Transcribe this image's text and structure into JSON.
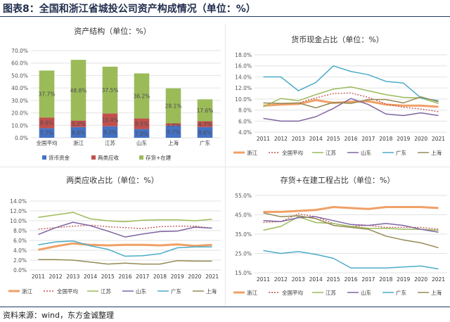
{
  "figure": {
    "title": "图表8：全国和浙江省城投公司资产构成情况（单位：%）",
    "source": "资料来源：wind，东方金诚整理"
  },
  "chart_data": [
    {
      "id": "asset-structure",
      "type": "bar",
      "stacked": true,
      "title": "资产结构（单位：%）",
      "categories": [
        "全国平均",
        "浙江",
        "江苏",
        "山东",
        "上海",
        "广东"
      ],
      "series": [
        {
          "name": "货币资金",
          "color": "#4472c4",
          "values": [
            7.7,
            8.6,
            9.2,
            7.0,
            9.7,
            8.6
          ]
        },
        {
          "name": "两类应收",
          "color": "#c0504d",
          "values": [
            8.6,
            5.2,
            10.4,
            8.5,
            1.9,
            4.7
          ]
        },
        {
          "name": "存货+在建",
          "color": "#9bbb59",
          "values": [
            37.7,
            48.8,
            37.5,
            36.2,
            28.1,
            17.6
          ]
        }
      ],
      "labels": [
        [
          "7.7%",
          "8.6%",
          "9.2%",
          "7.0%",
          "9.7%",
          "8.6%"
        ],
        [
          "8.6%",
          "5.2%",
          "10.4%",
          "8.5%",
          "1.9%",
          "4.7%"
        ],
        [
          "37.7%",
          "48.8%",
          "37.5%",
          "36.2%",
          "28.1%",
          "17.6%"
        ]
      ],
      "yticks": [
        "0.0%",
        "10.0%",
        "20.0%",
        "30.0%",
        "40.0%",
        "50.0%",
        "60.0%",
        "70.0%"
      ],
      "ylim": [
        0,
        70
      ]
    },
    {
      "id": "cash-share",
      "type": "line",
      "title": "货币现金占比（单位：%）",
      "x": [
        "2011",
        "2012",
        "2013",
        "2014",
        "2015",
        "2016",
        "2017",
        "2018",
        "2019",
        "2020",
        "2021"
      ],
      "yticks": [
        "4.0%",
        "6.0%",
        "8.0%",
        "10.0%",
        "12.0%",
        "14.0%",
        "16.0%",
        "18.0%"
      ],
      "ylim": [
        4,
        18
      ],
      "series": [
        {
          "name": "浙江",
          "color": "#f0a067",
          "style": "thick",
          "values": [
            8.8,
            9.0,
            9.1,
            9.8,
            9.3,
            9.5,
            9.6,
            9.0,
            8.8,
            8.8,
            8.6
          ]
        },
        {
          "name": "全国平均",
          "color": "#c0504d",
          "style": "dotted",
          "values": [
            9.3,
            9.2,
            9.3,
            10.2,
            11.0,
            11.1,
            10.3,
            9.1,
            8.5,
            8.2,
            7.7
          ]
        },
        {
          "name": "江苏",
          "color": "#9bbb59",
          "style": "solid",
          "values": [
            8.6,
            10.1,
            9.7,
            10.8,
            11.8,
            12.2,
            11.5,
            10.8,
            10.3,
            10.2,
            9.2
          ]
        },
        {
          "name": "山东",
          "color": "#8064a2",
          "style": "solid",
          "values": [
            6.5,
            6.0,
            6.0,
            6.8,
            8.3,
            10.1,
            9.0,
            7.3,
            7.0,
            7.5,
            7.0
          ]
        },
        {
          "name": "广东",
          "color": "#4bacc6",
          "style": "solid",
          "values": [
            14.0,
            14.0,
            11.5,
            13.0,
            16.0,
            15.0,
            14.4,
            13.2,
            12.9,
            10.2,
            9.7
          ]
        },
        {
          "name": "上海",
          "color": "#948a54",
          "style": "solid",
          "values": [
            9.3,
            9.2,
            9.3,
            8.4,
            9.4,
            9.2,
            9.9,
            9.9,
            9.3,
            10.4,
            9.5
          ]
        }
      ]
    },
    {
      "id": "receivables-share",
      "type": "line",
      "title": "两类应收占比（单位：%）",
      "x": [
        "2011",
        "2012",
        "2013",
        "2014",
        "2015",
        "2016",
        "2017",
        "2018",
        "2019",
        "2020",
        "2021"
      ],
      "yticks": [
        "0.0%",
        "2.0%",
        "4.0%",
        "6.0%",
        "8.0%",
        "10.0%",
        "12.0%",
        "14.0%"
      ],
      "ylim": [
        0,
        14
      ],
      "series": [
        {
          "name": "浙江",
          "color": "#f0a067",
          "style": "thick",
          "values": [
            4.1,
            4.8,
            5.4,
            5.1,
            5.0,
            5.1,
            5.1,
            5.0,
            5.2,
            4.9,
            5.1
          ]
        },
        {
          "name": "全国平均",
          "color": "#c0504d",
          "style": "dotted",
          "values": [
            8.3,
            8.6,
            8.9,
            9.1,
            8.8,
            8.6,
            8.4,
            8.8,
            8.9,
            8.9,
            8.5
          ]
        },
        {
          "name": "江苏",
          "color": "#9bbb59",
          "style": "solid",
          "values": [
            10.7,
            11.2,
            11.7,
            10.4,
            10.0,
            9.8,
            10.1,
            10.2,
            10.2,
            10.0,
            10.3
          ]
        },
        {
          "name": "山东",
          "color": "#8064a2",
          "style": "solid",
          "values": [
            7.2,
            8.6,
            9.7,
            9.0,
            7.9,
            6.7,
            7.3,
            7.8,
            7.9,
            8.7,
            8.5
          ]
        },
        {
          "name": "广东",
          "color": "#4bacc6",
          "style": "solid",
          "values": [
            5.1,
            5.7,
            5.9,
            4.9,
            4.2,
            2.8,
            2.9,
            3.3,
            4.5,
            4.7,
            4.7
          ]
        },
        {
          "name": "上海",
          "color": "#948a54",
          "style": "solid",
          "values": [
            2.1,
            2.1,
            2.0,
            1.6,
            1.2,
            1.4,
            1.2,
            1.2,
            1.9,
            1.8,
            1.8
          ]
        }
      ]
    },
    {
      "id": "inventory-share",
      "type": "line",
      "title": "存货+在建工程占比（单位：%）",
      "x": [
        "2011",
        "2012",
        "2013",
        "2014",
        "2015",
        "2016",
        "2017",
        "2018",
        "2019",
        "2020",
        "2021"
      ],
      "yticks": [
        "15.0%",
        "25.0%",
        "35.0%",
        "45.0%",
        "55.0%"
      ],
      "ylim": [
        15,
        55
      ],
      "series": [
        {
          "name": "浙江",
          "color": "#f0a067",
          "style": "thick",
          "values": [
            46.5,
            46.5,
            47.0,
            47.5,
            49.0,
            48.5,
            48.0,
            49.0,
            49.0,
            49.0,
            48.5
          ]
        },
        {
          "name": "全国平均",
          "color": "#c0504d",
          "style": "dotted",
          "values": [
            41.0,
            41.5,
            45.5,
            44.0,
            40.5,
            39.0,
            39.5,
            38.5,
            38.5,
            38.5,
            37.5
          ]
        },
        {
          "name": "江苏",
          "color": "#9bbb59",
          "style": "solid",
          "values": [
            37.0,
            39.0,
            44.0,
            41.0,
            40.5,
            39.0,
            38.0,
            38.0,
            37.5,
            37.5,
            37.0
          ]
        },
        {
          "name": "山东",
          "color": "#8064a2",
          "style": "solid",
          "values": [
            42.0,
            41.5,
            43.5,
            44.0,
            42.0,
            40.0,
            39.5,
            40.5,
            39.5,
            37.5,
            36.0
          ]
        },
        {
          "name": "广东",
          "color": "#4bacc6",
          "style": "solid",
          "values": [
            26.5,
            25.0,
            26.0,
            24.5,
            22.5,
            17.5,
            17.5,
            17.5,
            18.0,
            18.5,
            17.0
          ]
        },
        {
          "name": "上海",
          "color": "#948a54",
          "style": "solid",
          "values": [
            46.0,
            44.0,
            44.5,
            43.0,
            39.5,
            38.5,
            37.5,
            34.0,
            32.0,
            30.5,
            28.0
          ]
        }
      ]
    }
  ]
}
